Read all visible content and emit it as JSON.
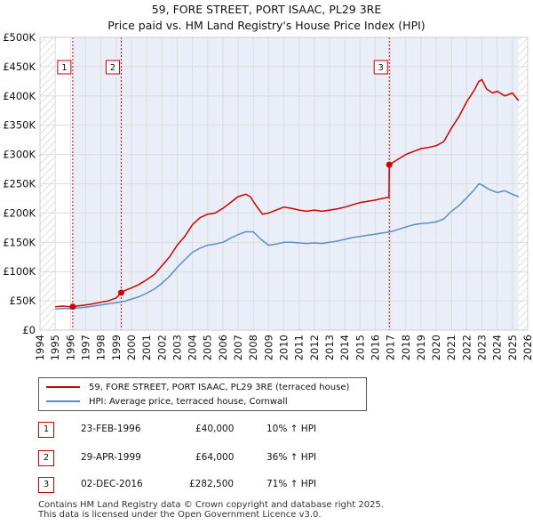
{
  "chart_data": {
    "type": "line",
    "title": "59, FORE STREET, PORT ISAAC, PL29 3RE",
    "subtitle": "Price paid vs. HM Land Registry's House Price Index (HPI)",
    "xlim": [
      1994,
      2026
    ],
    "ylim": [
      0,
      500000
    ],
    "x_ticks": [
      "1994",
      "1995",
      "1996",
      "1997",
      "1998",
      "1999",
      "2000",
      "2001",
      "2002",
      "2003",
      "2004",
      "2005",
      "2006",
      "2007",
      "2008",
      "2009",
      "2010",
      "2011",
      "2012",
      "2013",
      "2014",
      "2015",
      "2016",
      "2017",
      "2018",
      "2019",
      "2020",
      "2021",
      "2022",
      "2023",
      "2024",
      "2025",
      "2026"
    ],
    "y_ticks": [
      {
        "value": 0,
        "label": "£0"
      },
      {
        "value": 50000,
        "label": "£50K"
      },
      {
        "value": 100000,
        "label": "£100K"
      },
      {
        "value": 150000,
        "label": "£150K"
      },
      {
        "value": 200000,
        "label": "£200K"
      },
      {
        "value": 250000,
        "label": "£250K"
      },
      {
        "value": 300000,
        "label": "£300K"
      },
      {
        "value": 350000,
        "label": "£350K"
      },
      {
        "value": 400000,
        "label": "£400K"
      },
      {
        "value": 450000,
        "label": "£450K"
      },
      {
        "value": 500000,
        "label": "£500K"
      }
    ],
    "series": [
      {
        "name": "59, FORE STREET, PORT ISAAC, PL29 3RE (terraced house)",
        "color": "#cc0000",
        "x": [
          1995.0,
          1995.5,
          1996.0,
          1996.15,
          1996.5,
          1997.0,
          1997.5,
          1998.0,
          1998.5,
          1999.0,
          1999.33,
          1999.6,
          2000.0,
          2000.5,
          2001.0,
          2001.5,
          2002.0,
          2002.5,
          2003.0,
          2003.5,
          2004.0,
          2004.5,
          2005.0,
          2005.5,
          2006.0,
          2006.5,
          2007.0,
          2007.5,
          2007.8,
          2008.2,
          2008.6,
          2009.0,
          2009.5,
          2010.0,
          2010.5,
          2011.0,
          2011.5,
          2012.0,
          2012.5,
          2013.0,
          2013.5,
          2014.0,
          2014.5,
          2015.0,
          2015.5,
          2016.0,
          2016.5,
          2016.9,
          2016.92,
          2017.5,
          2018.0,
          2018.5,
          2019.0,
          2019.5,
          2020.0,
          2020.5,
          2021.0,
          2021.5,
          2022.0,
          2022.5,
          2022.8,
          2023.0,
          2023.3,
          2023.7,
          2024.0,
          2024.5,
          2025.0,
          2025.4
        ],
        "values": [
          40000,
          41000,
          40000,
          40000,
          41500,
          43000,
          45000,
          47500,
          50000,
          55000,
          64000,
          68000,
          72000,
          78000,
          86000,
          95000,
          110000,
          125000,
          145000,
          160000,
          180000,
          192000,
          198000,
          200000,
          208000,
          218000,
          228000,
          232000,
          228000,
          212000,
          198000,
          200000,
          205000,
          210000,
          208000,
          205000,
          203000,
          205000,
          203000,
          205000,
          207000,
          210000,
          214000,
          218000,
          220000,
          222000,
          225000,
          227000,
          282500,
          292000,
          300000,
          305000,
          310000,
          312000,
          315000,
          322000,
          345000,
          365000,
          390000,
          410000,
          425000,
          428000,
          412000,
          405000,
          408000,
          400000,
          405000,
          392000
        ]
      },
      {
        "name": "HPI: Average price, terraced house, Cornwall",
        "color": "#5b8ec9",
        "x": [
          1995.0,
          1995.5,
          1996.0,
          1996.5,
          1997.0,
          1997.5,
          1998.0,
          1998.5,
          1999.0,
          1999.5,
          2000.0,
          2000.5,
          2001.0,
          2001.5,
          2002.0,
          2002.5,
          2003.0,
          2003.5,
          2004.0,
          2004.5,
          2005.0,
          2005.5,
          2006.0,
          2006.5,
          2007.0,
          2007.5,
          2008.0,
          2008.5,
          2009.0,
          2009.5,
          2010.0,
          2010.5,
          2011.0,
          2011.5,
          2012.0,
          2012.5,
          2013.0,
          2013.5,
          2014.0,
          2014.5,
          2015.0,
          2015.5,
          2016.0,
          2016.5,
          2017.0,
          2017.5,
          2018.0,
          2018.5,
          2019.0,
          2019.5,
          2020.0,
          2020.5,
          2021.0,
          2021.5,
          2022.0,
          2022.5,
          2022.8,
          2023.0,
          2023.5,
          2024.0,
          2024.5,
          2025.0,
          2025.4
        ],
        "values": [
          36000,
          37000,
          37000,
          38000,
          39000,
          41000,
          43000,
          45000,
          47000,
          49000,
          53000,
          57000,
          63000,
          70000,
          80000,
          92000,
          107000,
          120000,
          133000,
          140000,
          145000,
          147000,
          150000,
          157000,
          163000,
          168000,
          168000,
          155000,
          145000,
          147000,
          150000,
          150000,
          149000,
          148000,
          149000,
          148000,
          150000,
          152000,
          155000,
          158000,
          160000,
          162000,
          164000,
          166000,
          168000,
          172000,
          176000,
          180000,
          182000,
          183000,
          185000,
          190000,
          203000,
          213000,
          226000,
          240000,
          250000,
          248000,
          240000,
          235000,
          238000,
          232000,
          228000
        ]
      }
    ],
    "sales": [
      {
        "label": "1",
        "x": 1996.15,
        "value": 40000
      },
      {
        "label": "2",
        "x": 1999.33,
        "value": 64000
      },
      {
        "label": "3",
        "x": 2016.92,
        "value": 282500
      }
    ],
    "marker_color": "#cc0000",
    "hatch_before": 1995.0,
    "hatch_after": 2025.4
  },
  "legend": {
    "entries": [
      {
        "label": "59, FORE STREET, PORT ISAAC, PL29 3RE (terraced house)",
        "color": "#cc0000"
      },
      {
        "label": "HPI: Average price, terraced house, Cornwall",
        "color": "#5b8ec9"
      }
    ]
  },
  "sales_table": [
    {
      "num": "1",
      "date": "23-FEB-1996",
      "price": "£40,000",
      "hpi": "10% ↑ HPI"
    },
    {
      "num": "2",
      "date": "29-APR-1999",
      "price": "£64,000",
      "hpi": "36% ↑ HPI"
    },
    {
      "num": "3",
      "date": "02-DEC-2016",
      "price": "£282,500",
      "hpi": "71% ↑ HPI"
    }
  ],
  "footer": {
    "line1": "Contains HM Land Registry data © Crown copyright and database right 2025.",
    "line2": "This data is licensed under the Open Government Licence v3.0."
  }
}
